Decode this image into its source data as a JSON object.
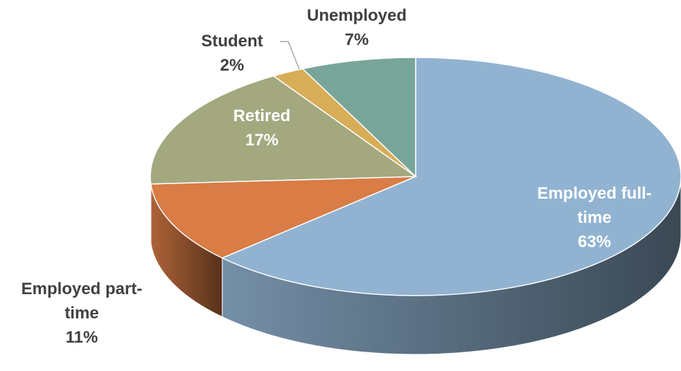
{
  "chart_data": {
    "type": "pie",
    "categories": [
      "Employed full-time",
      "Employed part-time",
      "Retired",
      "Student",
      "Unemployed"
    ],
    "values": [
      63,
      11,
      17,
      2,
      7
    ],
    "value_labels": [
      "63%",
      "11%",
      "17%",
      "2%",
      "7%"
    ],
    "colors": [
      "#91b3d1",
      "#d97c46",
      "#a3a87f",
      "#d8ad57",
      "#78a59a"
    ]
  }
}
